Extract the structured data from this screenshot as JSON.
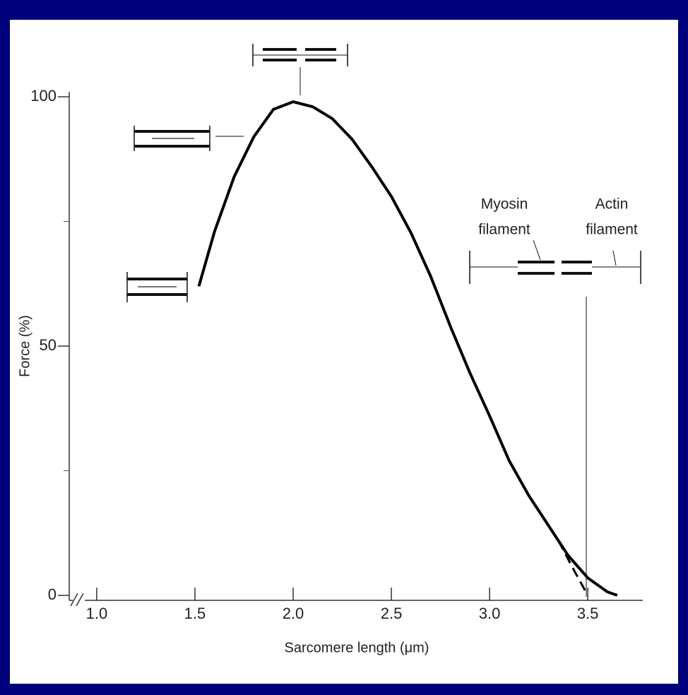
{
  "chart_data": {
    "type": "line",
    "x_label": "Sarcomere length (μm)",
    "y_label": "Force (%)",
    "xlim": [
      0.86,
      3.78
    ],
    "ylim": [
      -1,
      101
    ],
    "xticks": [
      {
        "value": 1,
        "label": "1.0"
      },
      1.5,
      {
        "value": 2,
        "label": "2.0"
      },
      2.5,
      {
        "value": 3,
        "label": "3.0"
      },
      3.5
    ],
    "yticks": [
      0,
      50,
      100
    ],
    "yticks_minor": [
      25,
      75
    ],
    "series": [
      {
        "color": "#000000",
        "dashed": false,
        "x": [
          1.52,
          1.6,
          1.7,
          1.8,
          1.9,
          2.0,
          2.1,
          2.2,
          2.3,
          2.4,
          2.5,
          2.6,
          2.7,
          2.8,
          2.9,
          3.0,
          3.1,
          3.2,
          3.3,
          3.4,
          3.5,
          3.6,
          3.65
        ],
        "values": [
          62,
          73,
          84,
          92,
          97.5,
          99,
          98,
          95.6,
          91.5,
          86,
          80,
          72.7,
          64,
          54,
          44.6,
          36,
          27,
          20,
          14,
          8,
          3.5,
          0.7,
          0
        ]
      },
      {
        "color": "#000000",
        "dashed": true,
        "x": [
          3.35,
          3.43,
          3.5
        ],
        "values": [
          11,
          5,
          0
        ]
      }
    ],
    "annotations": [
      [
        "Myosin",
        "filament"
      ],
      [
        "Actin",
        "filament"
      ]
    ]
  }
}
